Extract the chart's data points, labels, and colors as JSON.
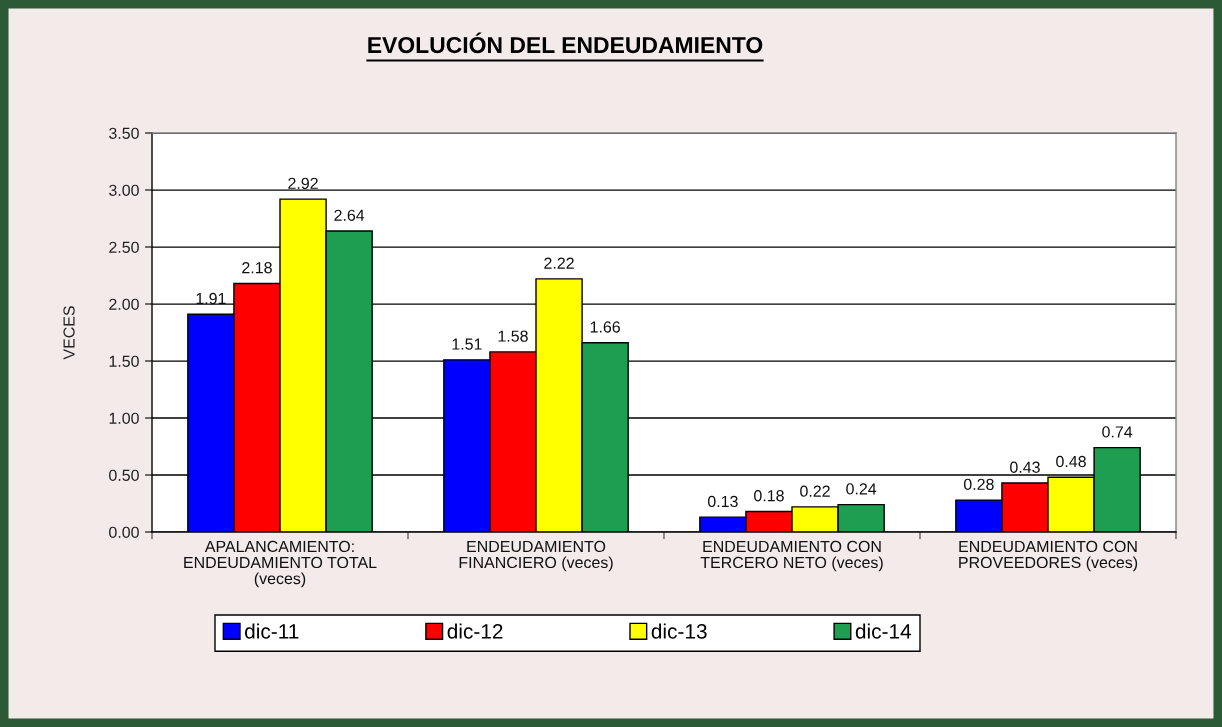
{
  "chart_data": {
    "type": "bar",
    "title": "EVOLUCIÓN DEL ENDEUDAMIENTO",
    "ylabel": "VECES",
    "categories": [
      "APALANCAMIENTO:\nENDEUDAMIENTO TOTAL\n(veces)",
      "ENDEUDAMIENTO\nFINANCIERO (veces)",
      "ENDEUDAMIENTO CON\nTERCERO NETO (veces)",
      "ENDEUDAMIENTO CON\nPROVEEDORES (veces)"
    ],
    "series": [
      {
        "name": "dic-11",
        "color": "#0000ff",
        "values": [
          1.91,
          1.51,
          0.13,
          0.28
        ]
      },
      {
        "name": "dic-12",
        "color": "#ff0000",
        "values": [
          2.18,
          1.58,
          0.18,
          0.43
        ]
      },
      {
        "name": "dic-13",
        "color": "#ffff00",
        "values": [
          2.92,
          2.22,
          0.22,
          0.48
        ]
      },
      {
        "name": "dic-14",
        "color": "#1e9e50",
        "values": [
          2.64,
          1.66,
          0.24,
          0.74
        ]
      }
    ],
    "ylim": [
      0,
      3.5
    ],
    "yticks": [
      {
        "value": 0,
        "label": "0.00"
      },
      {
        "value": 0.5,
        "label": "0.50"
      },
      {
        "value": 1,
        "label": "1.00"
      },
      {
        "value": 1.5,
        "label": "1.50"
      },
      {
        "value": 2,
        "label": "2.00"
      },
      {
        "value": 2.5,
        "label": "2.50"
      },
      {
        "value": 3,
        "label": "3.00"
      },
      {
        "value": 3.5,
        "label": "3.50"
      }
    ],
    "grid": "y",
    "legend": "bottom",
    "data_labels": true
  }
}
